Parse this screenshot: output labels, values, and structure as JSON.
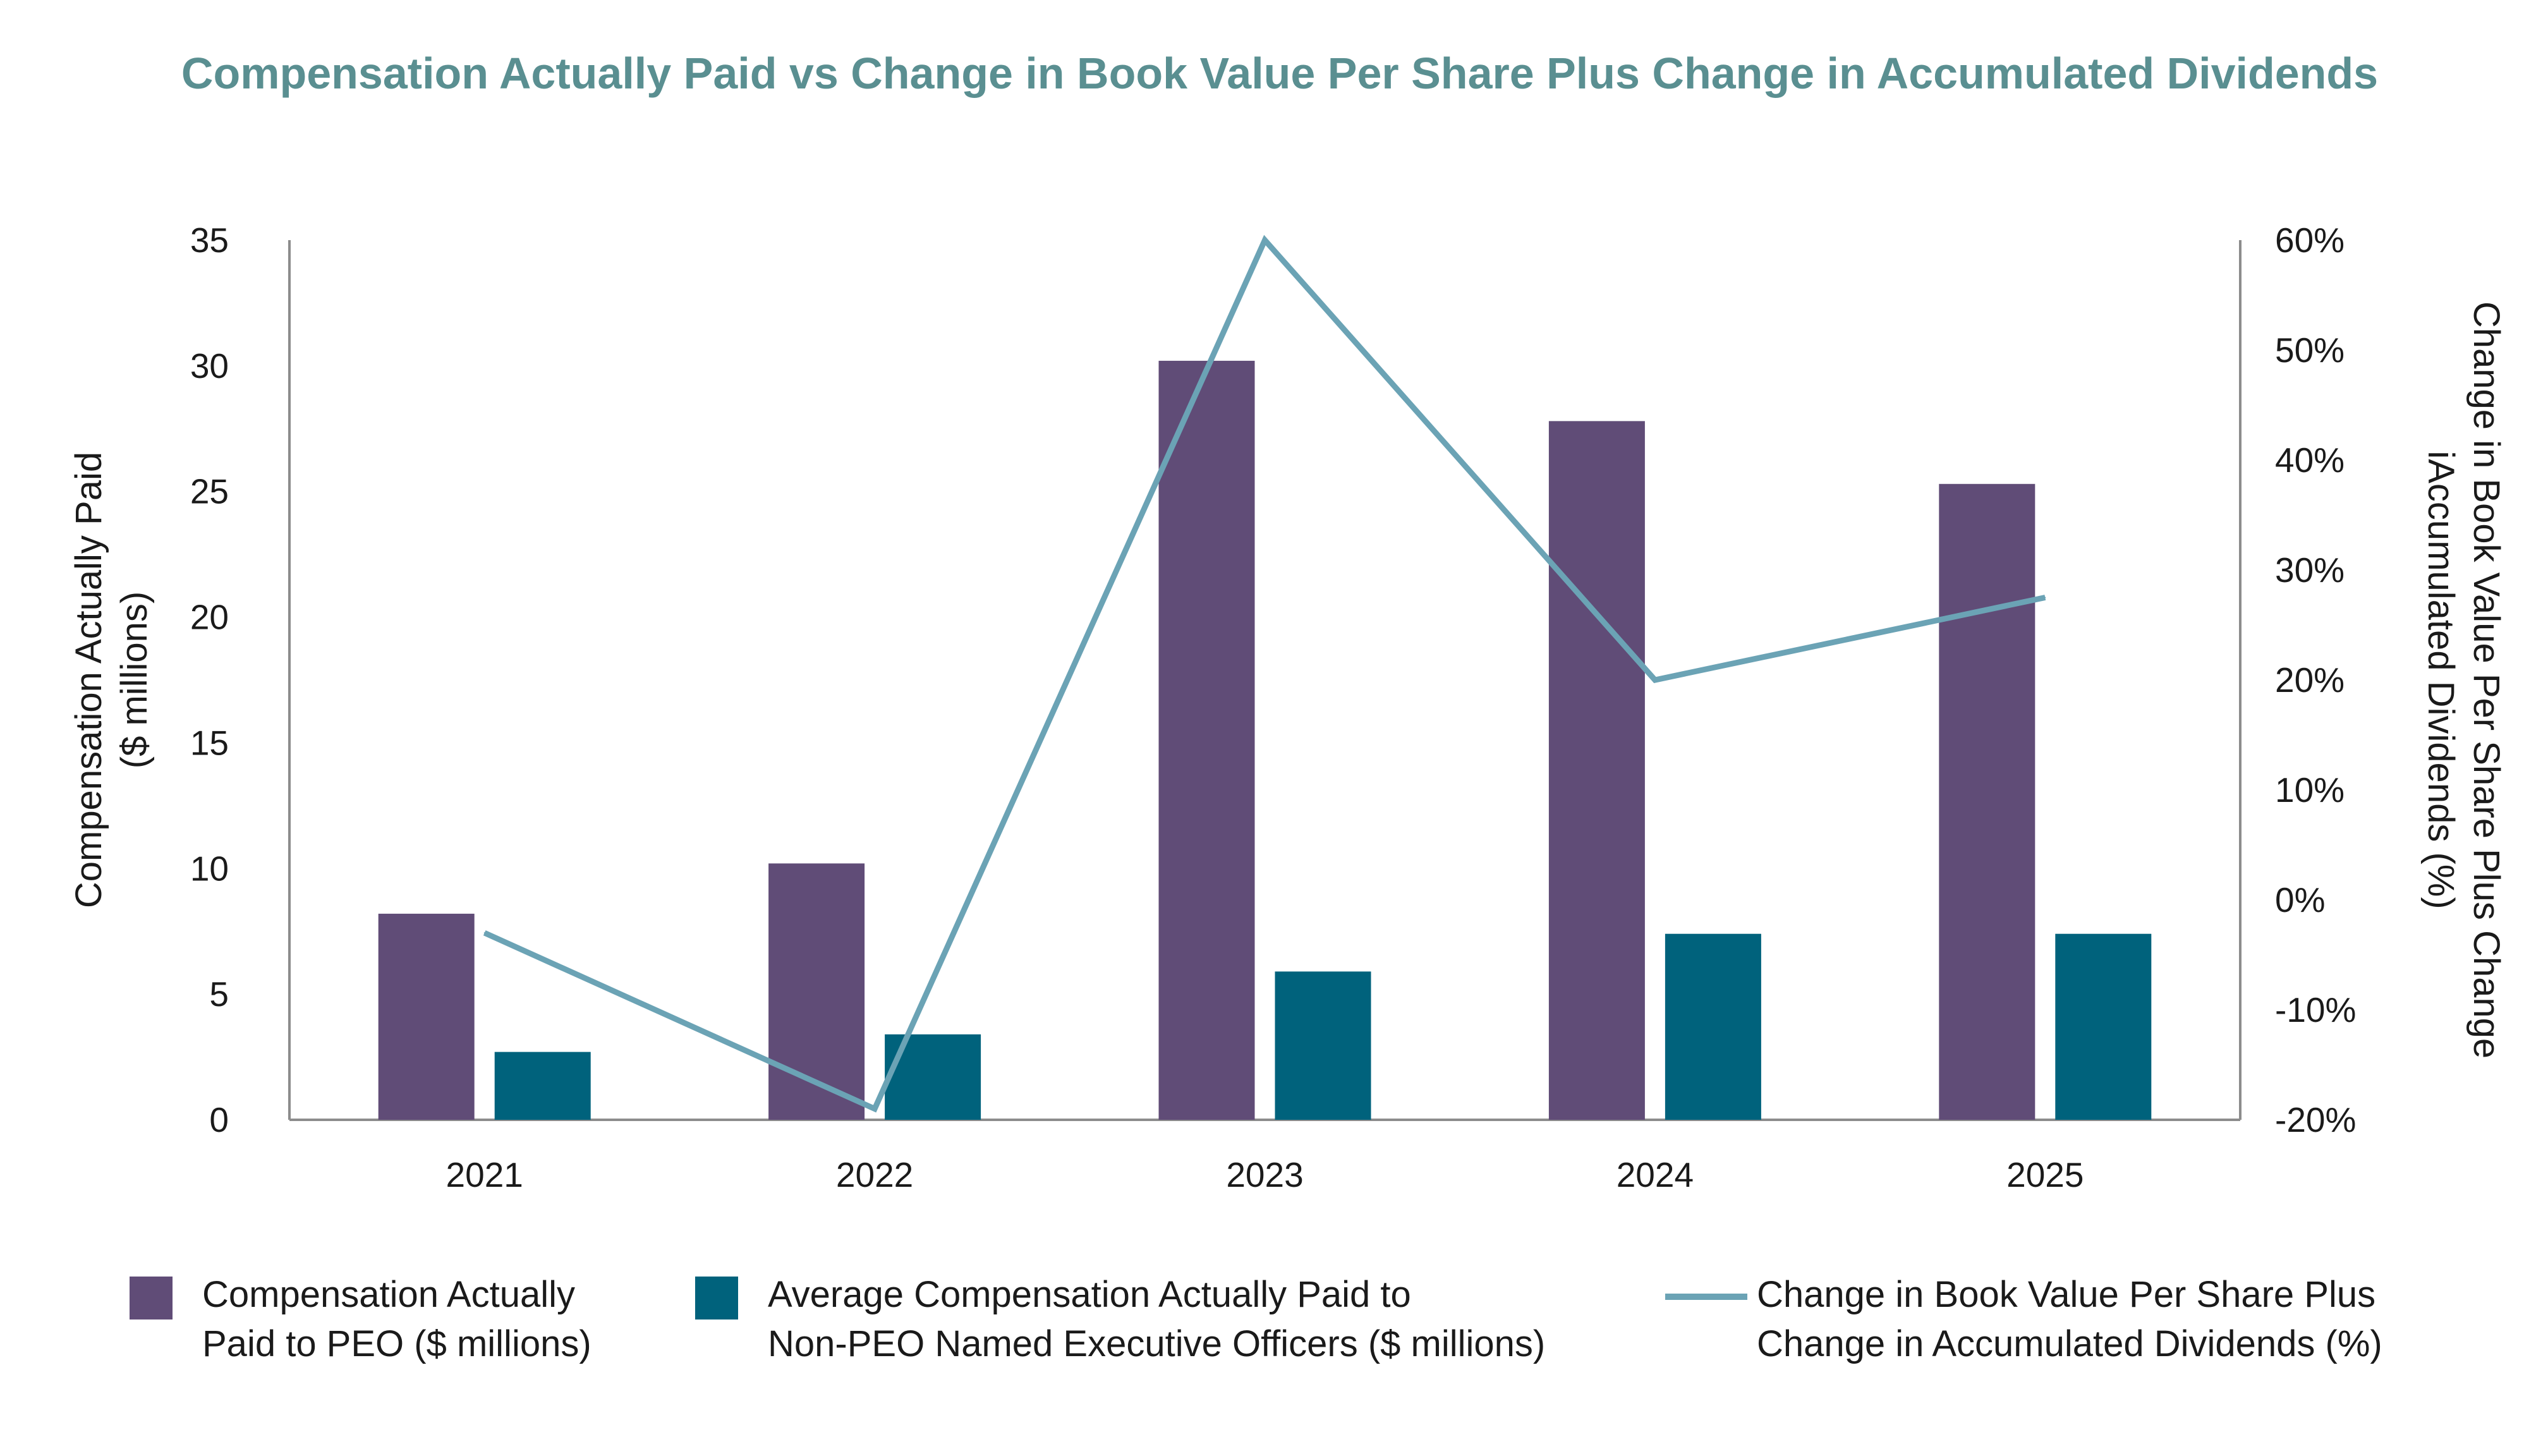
{
  "title": "Compensation Actually Paid vs Change in Book Value Per Share Plus Change in Accumulated Dividends",
  "colors": {
    "title": "#5a8f91",
    "peo_bar": "#604c77",
    "neo_bar": "#00627c",
    "line": "#6ba3b5",
    "axis": "#8c8c8c"
  },
  "left_axis": {
    "title_lines": [
      "Compensation Actually Paid",
      "($ millions)"
    ],
    "ticks": [
      "0",
      "5",
      "10",
      "15",
      "20",
      "25",
      "30",
      "35"
    ]
  },
  "right_axis": {
    "title_lines": [
      "Change in Book Value Per Share Plus Change",
      "iAccumulated Dividends (%)"
    ],
    "ticks": [
      "-20%",
      "-10%",
      "0%",
      "10%",
      "20%",
      "30%",
      "40%",
      "50%",
      "60%"
    ]
  },
  "legend": {
    "peo": [
      "Compensation Actually",
      "Paid to PEO ($ millions)"
    ],
    "neo": [
      "Average Compensation Actually Paid to",
      "Non-PEO Named Executive Officers ($ millions)"
    ],
    "line": [
      "Change in Book Value Per Share Plus",
      "Change in Accumulated Dividends (%)"
    ]
  },
  "chart_data": {
    "type": "bar",
    "title": "Compensation Actually Paid vs Change in Book Value Per Share Plus Change in Accumulated Dividends",
    "categories": [
      "2021",
      "2022",
      "2023",
      "2024",
      "2025"
    ],
    "series": [
      {
        "name": "Compensation Actually Paid to PEO ($ millions)",
        "type": "bar",
        "axis": "left",
        "values": [
          8.2,
          10.2,
          30.2,
          27.8,
          25.3
        ]
      },
      {
        "name": "Average Compensation Actually Paid to Non-PEO Named Executive Officers ($ millions)",
        "type": "bar",
        "axis": "left",
        "values": [
          2.7,
          3.4,
          5.9,
          7.4,
          7.4
        ]
      },
      {
        "name": "Change in Book Value Per Share Plus Change in Accumulated Dividends (%)",
        "type": "line",
        "axis": "right",
        "values": [
          -3,
          -19,
          60,
          20,
          27.5
        ]
      }
    ],
    "ylabel": "Compensation Actually Paid ($ millions)",
    "y2label": "Change in Book Value Per Share Plus Change iAccumulated Dividends (%)",
    "ylim": [
      0,
      35
    ],
    "y2lim": [
      -20,
      60
    ],
    "grid": false,
    "legend_position": "bottom"
  }
}
